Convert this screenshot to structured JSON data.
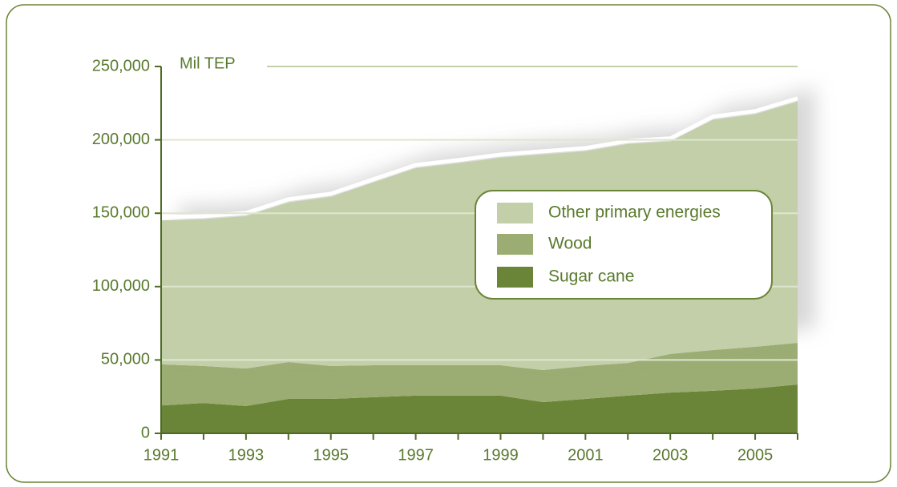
{
  "chart_data": {
    "type": "stacked_area",
    "y_label": "Mil TEP",
    "x": [
      1991,
      1992,
      1993,
      1994,
      1995,
      1996,
      1997,
      1998,
      1999,
      2000,
      2001,
      2002,
      2003,
      2004,
      2005,
      2006
    ],
    "xlim": [
      1991,
      2006
    ],
    "xticks": [
      1991,
      1993,
      1995,
      1997,
      1999,
      2001,
      2003,
      2005
    ],
    "ylim": [
      0,
      250000
    ],
    "yticks": [
      0,
      {
        "value": 50000,
        "label": "50,000"
      },
      {
        "value": 100000,
        "label": "100,000"
      },
      {
        "value": 150000,
        "label": "150,000"
      },
      {
        "value": 200000,
        "label": "200,000"
      },
      {
        "value": 250000,
        "label": "250,000"
      }
    ],
    "grid": true,
    "series": [
      {
        "name": "Sugar cane",
        "color": "#6b8538",
        "values": [
          19000,
          20700,
          18600,
          23500,
          23500,
          24600,
          25700,
          25700,
          25700,
          21300,
          23500,
          25700,
          27800,
          29000,
          30600,
          33300
        ]
      },
      {
        "name": "Wood",
        "color": "#9bad73",
        "values": [
          28000,
          25200,
          25600,
          25100,
          22400,
          21800,
          20700,
          20700,
          20700,
          21800,
          22400,
          22300,
          26300,
          27800,
          28400,
          28400
        ]
      },
      {
        "name": "Other primary energies",
        "color": "#c2cfa9",
        "values": [
          98200,
          99900,
          103800,
          108700,
          115200,
          124500,
          134300,
          137600,
          141400,
          146900,
          146300,
          149100,
          144700,
          156800,
          158400,
          164400
        ]
      }
    ]
  }
}
